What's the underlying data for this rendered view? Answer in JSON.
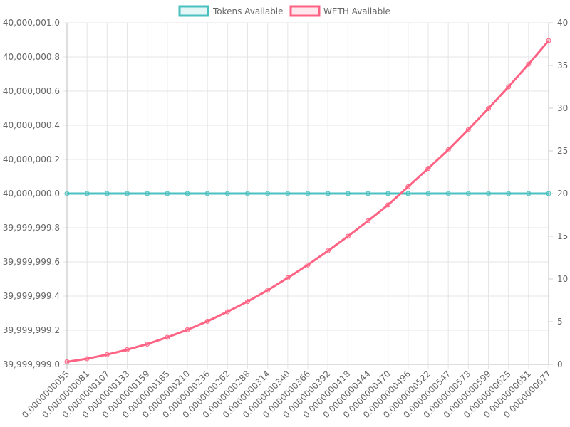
{
  "chart_data": {
    "type": "line",
    "legend_position": "top",
    "grid": true,
    "x": [
      "0.0000000055",
      "0.0000000081",
      "0.0000000107",
      "0.0000000133",
      "0.0000000159",
      "0.0000000185",
      "0.0000000210",
      "0.0000000236",
      "0.0000000262",
      "0.0000000288",
      "0.0000000314",
      "0.0000000340",
      "0.0000000366",
      "0.0000000392",
      "0.0000000418",
      "0.0000000444",
      "0.0000000470",
      "0.0000000496",
      "0.0000000522",
      "0.0000000547",
      "0.0000000573",
      "0.0000000599",
      "0.0000000625",
      "0.0000000651",
      "0.0000000677"
    ],
    "y_left": {
      "min": 39999999.0,
      "max": 40000001.0,
      "ticks": [
        "39,999,999.0",
        "39,999,999.2",
        "39,999,999.4",
        "39,999,999.6",
        "39,999,999.8",
        "40,000,000.0",
        "40,000,000.2",
        "40,000,000.4",
        "40,000,000.6",
        "40,000,000.8",
        "40,000,001.0"
      ]
    },
    "y_right": {
      "min": 0,
      "max": 40,
      "ticks": [
        "0",
        "5",
        "10",
        "15",
        "20",
        "25",
        "30",
        "35",
        "40"
      ]
    },
    "series": [
      {
        "name": "Tokens Available",
        "axis": "left",
        "color": "#4bc0c0",
        "values": [
          40000000,
          40000000,
          40000000,
          40000000,
          40000000,
          40000000,
          40000000,
          40000000,
          40000000,
          40000000,
          40000000,
          40000000,
          40000000,
          40000000,
          40000000,
          40000000,
          40000000,
          40000000,
          40000000,
          40000000,
          40000000,
          40000000,
          40000000,
          40000000,
          40000000
        ]
      },
      {
        "name": "WETH Available",
        "axis": "right",
        "color": "#ff6384",
        "values": [
          0.3,
          0.67,
          1.15,
          1.72,
          2.38,
          3.17,
          4.05,
          5.05,
          6.17,
          7.36,
          8.68,
          10.13,
          11.65,
          13.28,
          15.0,
          16.8,
          18.68,
          20.8,
          22.95,
          25.12,
          27.5,
          29.95,
          32.5,
          35.15,
          37.9
        ]
      }
    ]
  }
}
